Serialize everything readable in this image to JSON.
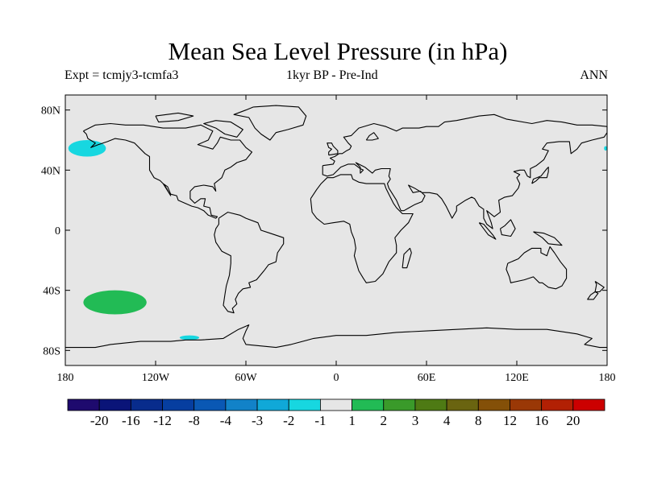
{
  "title": "Mean Sea Level Pressure (in hPa)",
  "subtitle_left": "Expt = tcmjy3-tcmfa3",
  "subtitle_center": "1kyr BP - Pre-Ind",
  "subtitle_right": "ANN",
  "colors": {
    "land_ocean_background": "#e6e6e6",
    "coastline": "#000000",
    "negative_anomaly": "#17d7e0",
    "positive_anomaly": "#22bb55"
  },
  "map": {
    "projection": "cylindrical equidistant",
    "lon_range": [
      -180,
      180
    ],
    "lat_range": [
      -90,
      90
    ],
    "y_ticks": [
      {
        "lat": 80,
        "label": "80N"
      },
      {
        "lat": 40,
        "label": "40N"
      },
      {
        "lat": 0,
        "label": "0"
      },
      {
        "lat": -40,
        "label": "40S"
      },
      {
        "lat": -80,
        "label": "80S"
      }
    ],
    "x_ticks": [
      {
        "lon": -180,
        "label": "180"
      },
      {
        "lon": -120,
        "label": "120W"
      },
      {
        "lon": -60,
        "label": "60W"
      },
      {
        "lon": 0,
        "label": "0"
      },
      {
        "lon": 60,
        "label": "60E"
      },
      {
        "lon": 120,
        "label": "120E"
      },
      {
        "lon": 180,
        "label": "180"
      }
    ],
    "anomaly_regions": [
      {
        "name": "north-pacific-negative",
        "lon": [
          -178,
          -153
        ],
        "lat": [
          49,
          60
        ],
        "category": "-2 to -1"
      },
      {
        "name": "south-pacific-positive",
        "lon": [
          -168,
          -126
        ],
        "lat": [
          -56,
          -40
        ],
        "category": "1 to 2"
      },
      {
        "name": "antarctic-coast-negative",
        "lon": [
          -104,
          -91
        ],
        "lat": [
          -73,
          -70
        ],
        "category": "-2 to -1"
      },
      {
        "name": "bering-edge-negative",
        "lon": [
          178,
          180
        ],
        "lat": [
          53,
          56
        ],
        "category": "-2 to -1"
      }
    ]
  },
  "colorbar": {
    "labels": [
      "-20",
      "-16",
      "-12",
      "-8",
      "-4",
      "-3",
      "-2",
      "-1",
      "1",
      "2",
      "3",
      "4",
      "8",
      "12",
      "16",
      "20"
    ],
    "colors": [
      "#1e0a6e",
      "#0a1478",
      "#082c8c",
      "#063ea0",
      "#0a58b4",
      "#1282c8",
      "#10a8d8",
      "#17d7e0",
      "#e6e6e6",
      "#22bb55",
      "#3a9a2a",
      "#4e7a14",
      "#6a6410",
      "#845008",
      "#9a3806",
      "#b22004",
      "#cc0000"
    ]
  }
}
